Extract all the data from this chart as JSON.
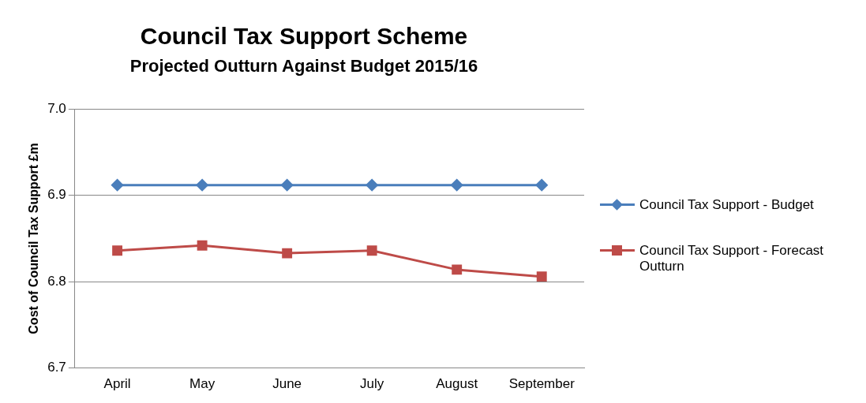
{
  "chart_data": {
    "type": "line",
    "title": "Council Tax Support Scheme",
    "subtitle": "Projected Outturn Against Budget 2015/16",
    "ylabel": "Cost of Council Tax Support £m",
    "categories": [
      "April",
      "May",
      "June",
      "July",
      "August",
      "September"
    ],
    "series": [
      {
        "name": "Council Tax Support - Budget",
        "color": "#4a7ebb",
        "marker": "diamond",
        "values": [
          6.912,
          6.912,
          6.912,
          6.912,
          6.912,
          6.912
        ]
      },
      {
        "name": "Council Tax Support - Forecast Outturn",
        "color": "#be4b48",
        "marker": "square",
        "values": [
          6.836,
          6.842,
          6.833,
          6.836,
          6.814,
          6.806
        ]
      }
    ],
    "ylim": [
      6.7,
      7.0
    ],
    "yticks": [
      6.7,
      6.8,
      6.9,
      {
        "value": 7.0,
        "label": "7.0"
      }
    ],
    "grid": "y",
    "legend": "right",
    "line_style": "solid"
  }
}
